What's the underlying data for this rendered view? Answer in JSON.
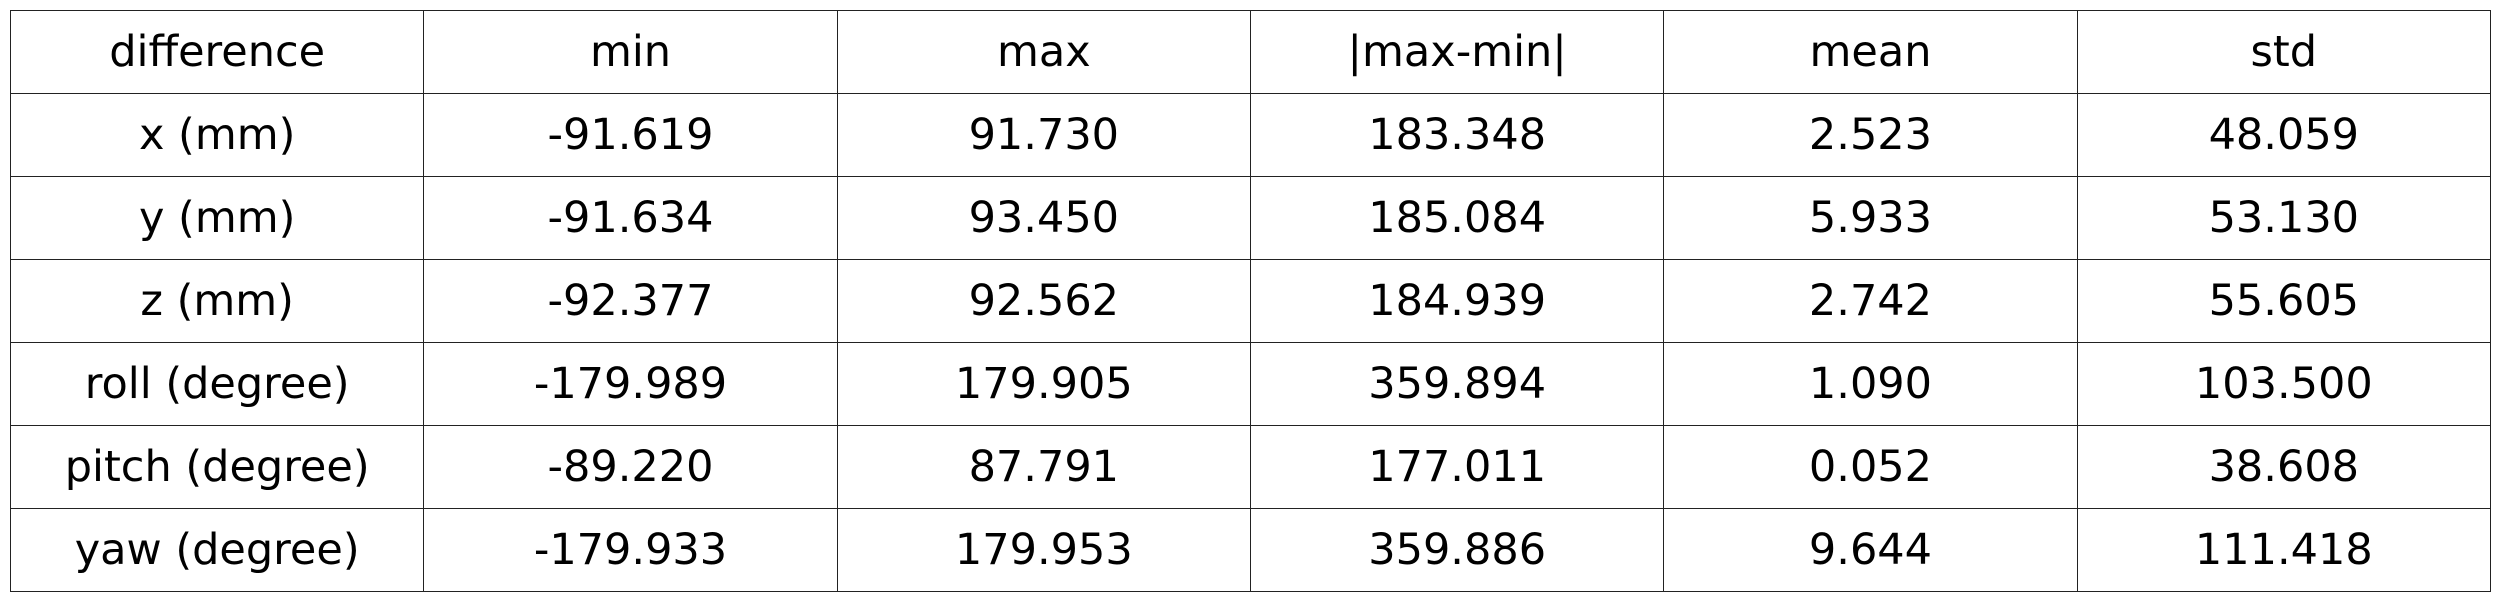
{
  "table": {
    "headers": [
      "difference",
      "min",
      "max",
      "|max-min|",
      "mean",
      "std"
    ],
    "rows": [
      [
        "x (mm)",
        "-91.619",
        "91.730",
        "183.348",
        "2.523",
        "48.059"
      ],
      [
        "y (mm)",
        "-91.634",
        "93.450",
        "185.084",
        "5.933",
        "53.130"
      ],
      [
        "z (mm)",
        "-92.377",
        "92.562",
        "184.939",
        "2.742",
        "55.605"
      ],
      [
        "roll (degree)",
        "-179.989",
        "179.905",
        "359.894",
        "1.090",
        "103.500"
      ],
      [
        "pitch (degree)",
        "-89.220",
        "87.791",
        "177.011",
        "0.052",
        "38.608"
      ],
      [
        "yaw (degree)",
        "-179.933",
        "179.953",
        "359.886",
        "9.644",
        "111.418"
      ]
    ]
  }
}
